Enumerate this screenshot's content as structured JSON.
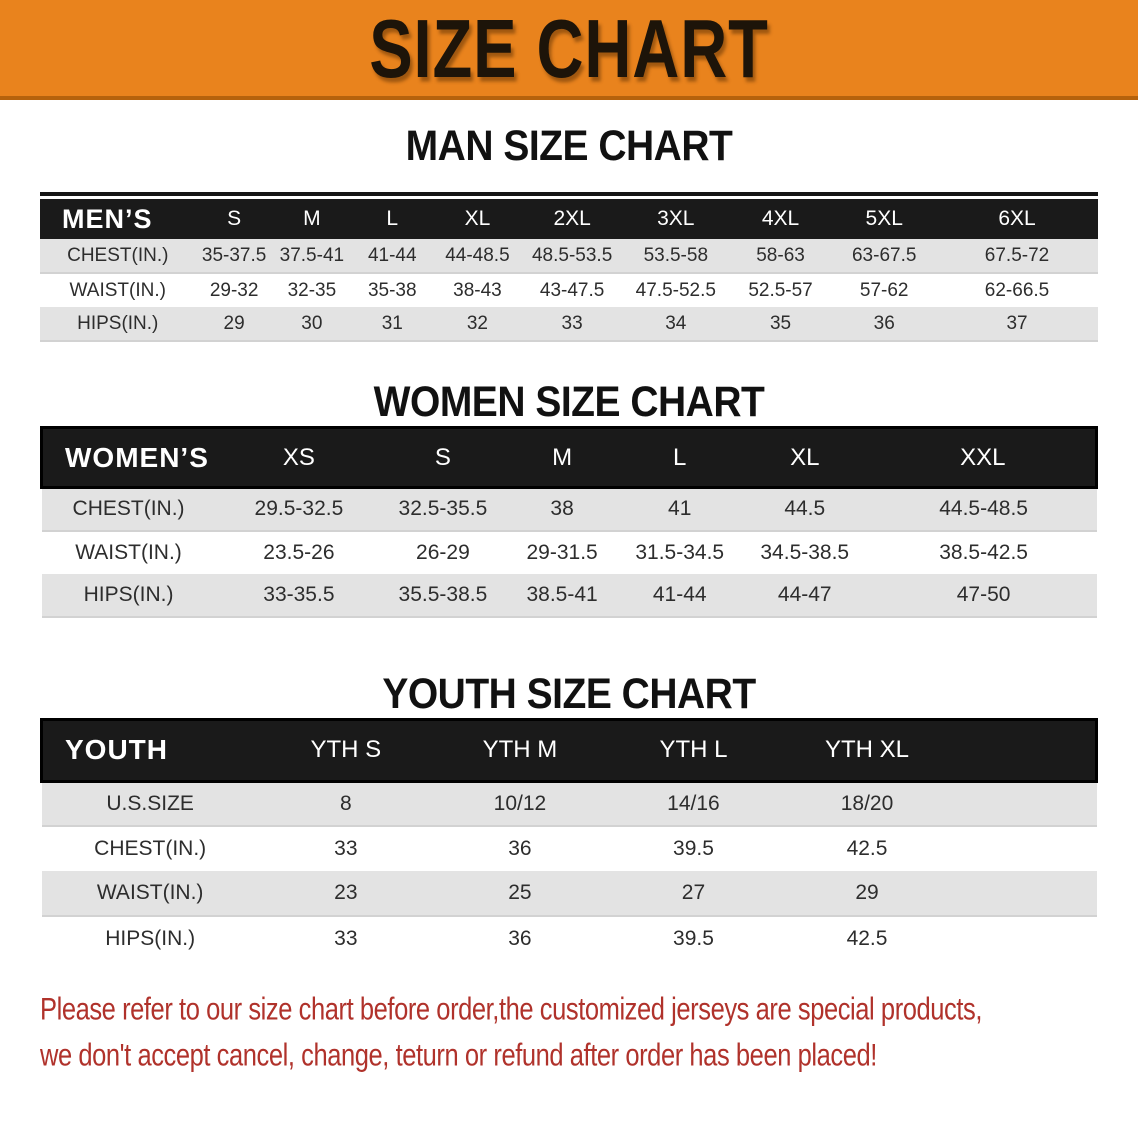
{
  "banner": {
    "title": "SIZE CHART"
  },
  "colors": {
    "banner_bg": "#E9831D",
    "banner_edge": "#B5620C",
    "header_band": "#1A1A1A",
    "header_text": "#FFFFFF",
    "stripe": "#E3E3E3",
    "stripe_edge": "#D2D2D2",
    "body_text": "#2D2D2D",
    "footnote_red": "#B0322B"
  },
  "sections": [
    {
      "heading": "MAN SIZE CHART",
      "table": {
        "label": "MEN’S",
        "columns": [
          "S",
          "M",
          "L",
          "XL",
          "2XL",
          "3XL",
          "4XL",
          "5XL",
          "6XL"
        ],
        "rows": [
          {
            "label": "CHEST(IN.)",
            "values": [
              "35-37.5",
              "37.5-41",
              "41-44",
              "44-48.5",
              "48.5-53.5",
              "53.5-58",
              "58-63",
              "63-67.5",
              "67.5-72"
            ]
          },
          {
            "label": "WAIST(IN.)",
            "values": [
              "29-32",
              "32-35",
              "35-38",
              "38-43",
              "43-47.5",
              "47.5-52.5",
              "52.5-57",
              "57-62",
              "62-66.5"
            ]
          },
          {
            "label": "HIPS(IN.)",
            "values": [
              "29",
              "30",
              "31",
              "32",
              "33",
              "34",
              "35",
              "36",
              "37"
            ]
          }
        ]
      }
    },
    {
      "heading": "WOMEN SIZE CHART",
      "table": {
        "label": "WOMEN’S",
        "columns": [
          "XS",
          "S",
          "M",
          "L",
          "XL",
          "XXL"
        ],
        "rows": [
          {
            "label": "CHEST(IN.)",
            "values": [
              "29.5-32.5",
              "32.5-35.5",
              "38",
              "41",
              "44.5",
              "44.5-48.5"
            ]
          },
          {
            "label": "WAIST(IN.)",
            "values": [
              "23.5-26",
              "26-29",
              "29-31.5",
              "31.5-34.5",
              "34.5-38.5",
              "38.5-42.5"
            ]
          },
          {
            "label": "HIPS(IN.)",
            "values": [
              "33-35.5",
              "35.5-38.5",
              "38.5-41",
              "41-44",
              "44-47",
              "47-50"
            ]
          }
        ]
      }
    },
    {
      "heading": "YOUTH SIZE CHART",
      "table": {
        "label": "YOUTH",
        "columns": [
          "YTH S",
          "YTH M",
          "YTH L",
          "YTH XL"
        ],
        "rows": [
          {
            "label": "U.S.SIZE",
            "values": [
              "8",
              "10/12",
              "14/16",
              "18/20"
            ]
          },
          {
            "label": "CHEST(IN.)",
            "values": [
              "33",
              "36",
              "39.5",
              "42.5"
            ]
          },
          {
            "label": "WAIST(IN.)",
            "values": [
              "23",
              "25",
              "27",
              "29"
            ]
          },
          {
            "label": "HIPS(IN.)",
            "values": [
              "33",
              "36",
              "39.5",
              "42.5"
            ]
          }
        ]
      }
    }
  ],
  "footnote": {
    "line1": "Please refer to our size chart before order,the customized jerseys are special products,",
    "line2": "we don't accept cancel, change, teturn or refund after order has been placed!"
  }
}
